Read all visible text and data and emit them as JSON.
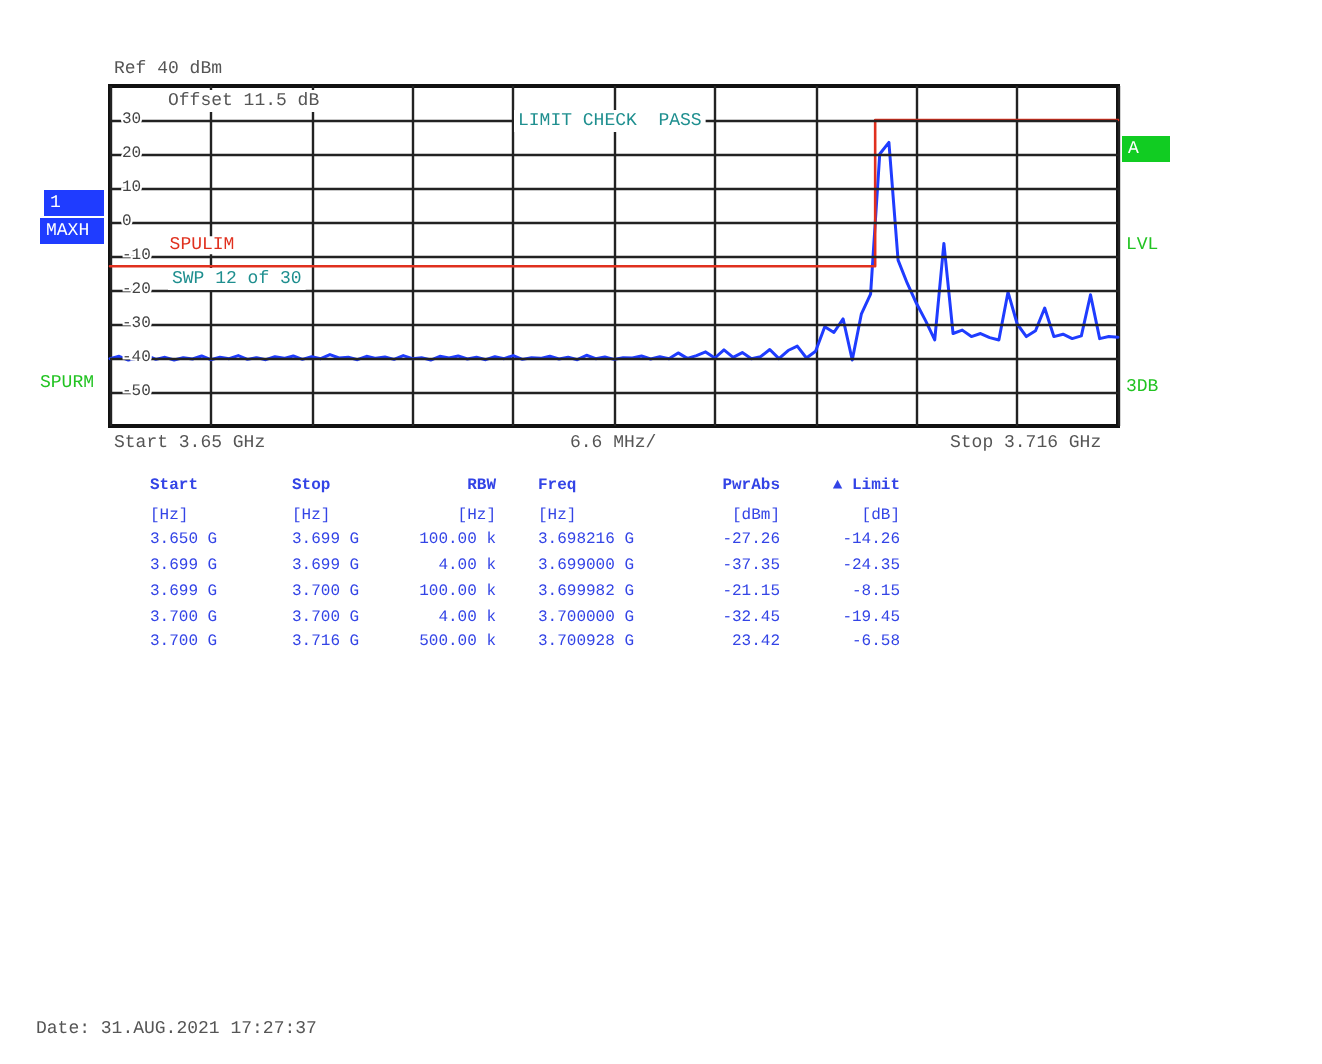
{
  "chart_data": {
    "type": "line",
    "categories": [
      null,
      null,
      null,
      null,
      null,
      null,
      null,
      null,
      null,
      null,
      null,
      null,
      null,
      null,
      null,
      null,
      null,
      null,
      null,
      null,
      null,
      null,
      null,
      null,
      null,
      null,
      null,
      null,
      null,
      null,
      null,
      null,
      null,
      null,
      null,
      null,
      null,
      null,
      null,
      null,
      null,
      null,
      null,
      null,
      null,
      null,
      null,
      null,
      null,
      null,
      null,
      null,
      null,
      null,
      null,
      null,
      null,
      null,
      null,
      null,
      null,
      null,
      null,
      null,
      null,
      null,
      null,
      null,
      null,
      null,
      null,
      null,
      null,
      null,
      null,
      null,
      null,
      null,
      null,
      null,
      null,
      null,
      null,
      null,
      null,
      null,
      null,
      null,
      null,
      null,
      null,
      null,
      null,
      null,
      null,
      null,
      null,
      null,
      null,
      null,
      null,
      null,
      null,
      null,
      null,
      null,
      null,
      null,
      null,
      null,
      null
    ],
    "ylim": [
      -60,
      40
    ],
    "yticks": [
      -50,
      -40,
      -30,
      -20,
      -10,
      0,
      10,
      20,
      30
    ],
    "grid": true,
    "tick_labels": "y",
    "marker": "none",
    "line_style": "solid",
    "series": [
      {
        "color": "#1f3cff",
        "values": [
          -40.2,
          -39.5,
          -40.6,
          -40,
          -39.2,
          -40.4,
          -39.8,
          -40.6,
          -39.9,
          -40.3,
          -39.4,
          -40.5,
          -39.8,
          -40.2,
          -39.3,
          -40.4,
          -39.9,
          -40.5,
          -39.6,
          -40.1,
          -39.4,
          -40.4,
          -39.6,
          -40.2,
          -39,
          -40,
          -39.8,
          -40.5,
          -39.5,
          -40.1,
          -39.7,
          -40.4,
          -39.3,
          -40.2,
          -39.9,
          -40.6,
          -39.5,
          -40,
          -39.4,
          -40.3,
          -39.8,
          -40.5,
          -39.6,
          -40.2,
          -39.3,
          -40.4,
          -39.9,
          -40.1,
          -39.5,
          -40.3,
          -39.8,
          -40.5,
          -39.2,
          -40.2,
          -39.7,
          -40.4,
          -39.9,
          -40,
          -39.4,
          -40.3,
          -39.6,
          -40.2,
          -38.5,
          -40.1,
          -39.3,
          -38.2,
          -40,
          -37.6,
          -39.8,
          -38.4,
          -40.2,
          -39.6,
          -37.5,
          -40.2,
          -37.8,
          -36.5,
          -40,
          -38,
          -30.8,
          -32.5,
          -28.5,
          -40.6,
          -27,
          -21.2,
          20,
          23.4,
          -11.2,
          -18,
          -23.9,
          -29,
          -34.7,
          -6.3,
          -32.8,
          -31.8,
          -33.7,
          -32.8,
          -34,
          -34.7,
          -20.6,
          -30,
          -33.7,
          -32,
          -25.3,
          -33.7,
          -33,
          -34.3,
          -33.5,
          -21.4,
          -34.3,
          -33.7,
          -33.9
        ]
      },
      {
        "type": "step",
        "name": "SPULIM",
        "color": "#e0301e",
        "values": [
          -13,
          -13,
          -13,
          -13,
          -13,
          -13,
          -13,
          -13,
          -13,
          -13,
          -13,
          -13,
          -13,
          -13,
          -13,
          -13,
          -13,
          -13,
          -13,
          -13,
          -13,
          -13,
          -13,
          -13,
          -13,
          -13,
          -13,
          -13,
          -13,
          -13,
          -13,
          -13,
          -13,
          -13,
          -13,
          -13,
          -13,
          -13,
          -13,
          -13,
          -13,
          -13,
          -13,
          -13,
          -13,
          -13,
          -13,
          -13,
          -13,
          -13,
          -13,
          -13,
          -13,
          -13,
          -13,
          -13,
          -13,
          -13,
          -13,
          -13,
          -13,
          -13,
          -13,
          -13,
          -13,
          -13,
          -13,
          -13,
          -13,
          -13,
          -13,
          -13,
          -13,
          -13,
          -13,
          -13,
          -13,
          -13,
          -13,
          -13,
          -13,
          -13,
          -13,
          -13,
          30,
          30,
          30,
          30,
          30,
          30,
          30,
          30,
          30,
          30,
          30,
          30,
          30,
          30,
          30,
          30,
          30,
          30,
          30,
          30,
          30,
          30,
          30,
          30,
          30,
          30,
          30
        ]
      }
    ],
    "annotations": [
      "Ref 40 dBm",
      "Offset 11.5 dB",
      "LIMIT CHECK  PASS",
      "SWP 12 of 30",
      "1",
      "MAXH",
      "SPURM",
      "A",
      "LVL",
      "3DB",
      "Start 3.65 GHz",
      "6.6 MHz/",
      "Stop 3.716 GHz",
      "Start",
      "Stop",
      "RBW",
      "Freq",
      "PwrAbs",
      "▲ Limit",
      "[Hz]",
      "[Hz]",
      "[Hz]",
      "[Hz]",
      "[dBm]",
      "[dB]",
      "3.650 G",
      "3.699 G",
      "100.00 k",
      "3.698216 G",
      "-27.26",
      "-14.26",
      "3.699 G",
      "3.699 G",
      "4.00 k",
      "3.699000 G",
      "-37.35",
      "-24.35",
      "3.699 G",
      "3.700 G",
      "100.00 k",
      "3.699982 G",
      "-21.15",
      "-8.15",
      "3.700 G",
      "3.700 G",
      "4.00 k",
      "3.700000 G",
      "-32.45",
      "-19.45",
      "3.700 G",
      "3.716 G",
      "500.00 k",
      "3.700928 G",
      "23.42",
      "-6.58",
      "Date: 31.AUG.2021 17:27:37"
    ]
  }
}
